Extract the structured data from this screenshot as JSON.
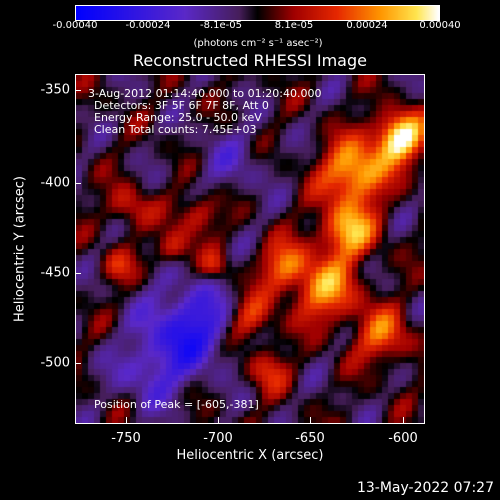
{
  "colorbar": {
    "ticks": [
      "-0.00040",
      "-0.00024",
      "-8.1e-05",
      "8.1e-05",
      "0.00024",
      "0.00040"
    ],
    "units": "(photons cm⁻² s⁻¹ asec⁻²)",
    "range": [
      -0.0004,
      0.0004
    ]
  },
  "title": "Reconstructed RHESSI Image",
  "info": {
    "time": "3-Aug-2012 01:14:40.000 to 01:20:40.000",
    "detectors": "Detectors: 3F 5F 6F 7F 8F, Att 0",
    "energy": "Energy Range: 25.0 - 50.0 keV",
    "clean": "Clean     Total counts: 7.45E+03",
    "peak": "Position of Peak = [-605,-381]"
  },
  "axes": {
    "xlabel": "Heliocentric X (arcsec)",
    "ylabel": "Heliocentric Y (arcsec)",
    "xticks": [
      "-750",
      "-700",
      "-650",
      "-600"
    ],
    "yticks": [
      "-350",
      "-400",
      "-450",
      "-500"
    ],
    "xlim": [
      -775,
      -590
    ],
    "ylim": [
      -535,
      -340
    ]
  },
  "footer": "13-May-2022 07:27"
}
